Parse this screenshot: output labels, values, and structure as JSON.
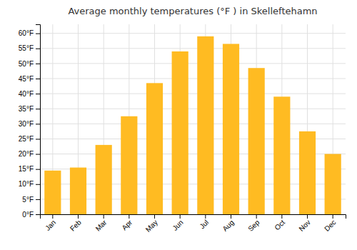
{
  "chart_data": {
    "type": "bar",
    "title": "Average monthly temperatures (°F ) in Skelleftehamn",
    "categories": [
      "Jan",
      "Feb",
      "Mar",
      "Apr",
      "May",
      "Jun",
      "Jul",
      "Aug",
      "Sep",
      "Oct",
      "Nov",
      "Dec"
    ],
    "values": [
      14.5,
      15.5,
      23.0,
      32.5,
      43.5,
      54.0,
      59.0,
      56.5,
      48.5,
      39.0,
      27.5,
      20.0
    ],
    "color": "#FFBB22",
    "ylim": [
      0,
      63
    ],
    "yticks": [
      {
        "value": 0,
        "label": "0°F"
      },
      {
        "value": 5,
        "label": "5°F"
      },
      {
        "value": 10,
        "label": "10°F"
      },
      {
        "value": 15,
        "label": "15°F"
      },
      {
        "value": 20,
        "label": "20°F"
      },
      {
        "value": 25,
        "label": "25°F"
      },
      {
        "value": 30,
        "label": "30°F"
      },
      {
        "value": 35,
        "label": "35°F"
      },
      {
        "value": 40,
        "label": "40°F"
      },
      {
        "value": 45,
        "label": "45°F"
      },
      {
        "value": 50,
        "label": "50°F"
      },
      {
        "value": 55,
        "label": "55°F"
      },
      {
        "value": 60,
        "label": "60°F"
      }
    ],
    "grid": true
  }
}
